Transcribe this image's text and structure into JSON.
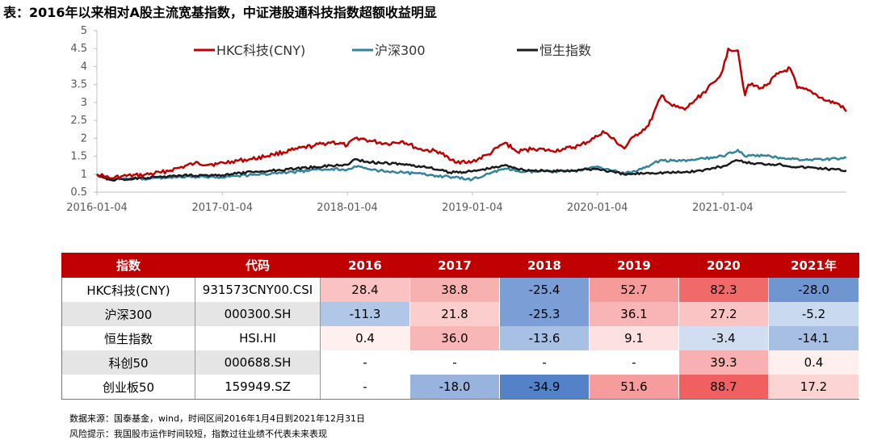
{
  "title": "表：2016年以来相对A股主流宽基指数，中证港股通科技指数超额收益明显",
  "chart_data": {
    "type": "line",
    "title": "",
    "ylim": [
      0.5,
      5
    ],
    "yticks": [
      "0.5",
      "1",
      "1.5",
      "2",
      "2.5",
      "3",
      "3.5",
      "4",
      "4.5",
      "5"
    ],
    "xticks": [
      "2016-01-04",
      "2017-01-04",
      "2018-01-04",
      "2019-01-04",
      "2020-01-04",
      "2021-01-04"
    ],
    "x_range": [
      "2016-01-04",
      "2021-12-31"
    ],
    "grid": false,
    "legend_position": "top-center",
    "series": [
      {
        "name": "HKC科技(CNY)",
        "color": "#c00000",
        "points": [
          [
            "2016-01-04",
            1.0
          ],
          [
            "2016-02-12",
            0.88
          ],
          [
            "2016-03-15",
            0.94
          ],
          [
            "2016-05-20",
            0.98
          ],
          [
            "2016-07-10",
            1.05
          ],
          [
            "2016-09-01",
            1.18
          ],
          [
            "2016-10-15",
            1.3
          ],
          [
            "2016-12-20",
            1.28
          ],
          [
            "2017-02-01",
            1.36
          ],
          [
            "2017-04-01",
            1.42
          ],
          [
            "2017-06-01",
            1.55
          ],
          [
            "2017-08-01",
            1.68
          ],
          [
            "2017-10-01",
            1.8
          ],
          [
            "2017-11-20",
            1.9
          ],
          [
            "2018-01-04",
            1.8
          ],
          [
            "2018-02-01",
            2.02
          ],
          [
            "2018-03-15",
            1.92
          ],
          [
            "2018-05-01",
            1.85
          ],
          [
            "2018-06-15",
            1.92
          ],
          [
            "2018-08-01",
            1.7
          ],
          [
            "2018-10-01",
            1.62
          ],
          [
            "2018-10-30",
            1.4
          ],
          [
            "2018-12-20",
            1.32
          ],
          [
            "2019-01-04",
            1.35
          ],
          [
            "2019-02-20",
            1.55
          ],
          [
            "2019-04-10",
            1.88
          ],
          [
            "2019-05-15",
            1.62
          ],
          [
            "2019-07-01",
            1.72
          ],
          [
            "2019-08-20",
            1.65
          ],
          [
            "2019-10-01",
            1.7
          ],
          [
            "2019-11-15",
            1.8
          ],
          [
            "2020-01-04",
            2.05
          ],
          [
            "2020-01-20",
            2.2
          ],
          [
            "2020-03-23",
            1.72
          ],
          [
            "2020-04-20",
            2.05
          ],
          [
            "2020-06-01",
            2.35
          ],
          [
            "2020-07-10",
            3.2
          ],
          [
            "2020-08-10",
            2.9
          ],
          [
            "2020-09-15",
            2.8
          ],
          [
            "2020-10-20",
            3.1
          ],
          [
            "2020-12-15",
            3.6
          ],
          [
            "2021-01-04",
            3.9
          ],
          [
            "2021-01-20",
            4.5
          ],
          [
            "2021-02-17",
            4.45
          ],
          [
            "2021-03-10",
            3.2
          ],
          [
            "2021-03-20",
            3.5
          ],
          [
            "2021-05-01",
            3.4
          ],
          [
            "2021-06-15",
            3.8
          ],
          [
            "2021-07-20",
            3.95
          ],
          [
            "2021-08-10",
            3.4
          ],
          [
            "2021-09-20",
            3.3
          ],
          [
            "2021-11-01",
            3.05
          ],
          [
            "2021-12-10",
            2.95
          ],
          [
            "2021-12-31",
            2.75
          ]
        ]
      },
      {
        "name": "沪深300",
        "color": "#31849b",
        "points": [
          [
            "2016-01-04",
            1.0
          ],
          [
            "2016-02-12",
            0.85
          ],
          [
            "2016-05-20",
            0.87
          ],
          [
            "2016-08-15",
            0.92
          ],
          [
            "2016-12-20",
            0.92
          ],
          [
            "2017-04-01",
            0.98
          ],
          [
            "2017-07-15",
            1.05
          ],
          [
            "2017-11-20",
            1.15
          ],
          [
            "2018-01-04",
            1.13
          ],
          [
            "2018-01-25",
            1.22
          ],
          [
            "2018-03-15",
            1.12
          ],
          [
            "2018-06-15",
            1.05
          ],
          [
            "2018-09-01",
            0.98
          ],
          [
            "2018-12-20",
            0.87
          ],
          [
            "2019-01-04",
            0.85
          ],
          [
            "2019-03-01",
            1.05
          ],
          [
            "2019-04-15",
            1.15
          ],
          [
            "2019-06-01",
            1.06
          ],
          [
            "2019-08-01",
            1.08
          ],
          [
            "2019-11-15",
            1.1
          ],
          [
            "2020-01-04",
            1.22
          ],
          [
            "2020-03-23",
            1.02
          ],
          [
            "2020-05-01",
            1.1
          ],
          [
            "2020-07-10",
            1.4
          ],
          [
            "2020-08-20",
            1.36
          ],
          [
            "2020-10-15",
            1.4
          ],
          [
            "2021-01-04",
            1.5
          ],
          [
            "2021-02-17",
            1.68
          ],
          [
            "2021-03-10",
            1.5
          ],
          [
            "2021-05-01",
            1.52
          ],
          [
            "2021-07-01",
            1.45
          ],
          [
            "2021-09-01",
            1.4
          ],
          [
            "2021-11-01",
            1.42
          ],
          [
            "2021-12-31",
            1.45
          ]
        ]
      },
      {
        "name": "恒生指数",
        "color": "#1a1a1a",
        "points": [
          [
            "2016-01-04",
            1.0
          ],
          [
            "2016-02-12",
            0.84
          ],
          [
            "2016-06-01",
            0.9
          ],
          [
            "2016-09-15",
            0.98
          ],
          [
            "2016-12-20",
            0.96
          ],
          [
            "2017-04-01",
            1.06
          ],
          [
            "2017-07-15",
            1.14
          ],
          [
            "2017-11-20",
            1.24
          ],
          [
            "2018-01-04",
            1.26
          ],
          [
            "2018-01-26",
            1.42
          ],
          [
            "2018-03-15",
            1.33
          ],
          [
            "2018-06-15",
            1.28
          ],
          [
            "2018-09-01",
            1.18
          ],
          [
            "2018-10-30",
            1.05
          ],
          [
            "2019-01-04",
            1.08
          ],
          [
            "2019-04-15",
            1.25
          ],
          [
            "2019-06-01",
            1.12
          ],
          [
            "2019-08-20",
            1.08
          ],
          [
            "2019-11-15",
            1.12
          ],
          [
            "2020-01-04",
            1.15
          ],
          [
            "2020-03-23",
            0.99
          ],
          [
            "2020-06-01",
            1.04
          ],
          [
            "2020-09-01",
            1.05
          ],
          [
            "2020-11-01",
            1.1
          ],
          [
            "2021-01-04",
            1.22
          ],
          [
            "2021-02-17",
            1.38
          ],
          [
            "2021-04-01",
            1.3
          ],
          [
            "2021-06-15",
            1.28
          ],
          [
            "2021-08-10",
            1.2
          ],
          [
            "2021-10-01",
            1.18
          ],
          [
            "2021-12-31",
            1.1
          ]
        ]
      }
    ]
  },
  "table": {
    "headers": [
      "指数",
      "代码",
      "2016",
      "2017",
      "2018",
      "2019",
      "2020",
      "2021年"
    ],
    "rows": [
      {
        "name": "HKC科技(CNY)",
        "code": "931573CNY00.CSI",
        "values": [
          "28.4",
          "38.8",
          "-25.4",
          "52.7",
          "82.3",
          "-28.0"
        ]
      },
      {
        "name": "沪深300",
        "code": "000300.SH",
        "values": [
          "-11.3",
          "21.8",
          "-25.3",
          "36.1",
          "27.2",
          "-5.2"
        ]
      },
      {
        "name": "恒生指数",
        "code": "HSI.HI",
        "values": [
          "0.4",
          "36.0",
          "-13.6",
          "9.1",
          "-3.4",
          "-14.1"
        ]
      },
      {
        "name": "科创50",
        "code": "000688.SH",
        "values": [
          "-",
          "-",
          "-",
          "-",
          "39.3",
          "0.4"
        ]
      },
      {
        "name": "创业板50",
        "code": "159949.SZ",
        "values": [
          "-",
          "-18.0",
          "-34.9",
          "51.6",
          "88.7",
          "17.2"
        ]
      }
    ]
  },
  "notes": {
    "source": "数据来源：国泰基金，wind，时间区间2016年1月4日到2021年12月31日",
    "risk": "风险提示：我国股市运作时间较短，指数过往业绩不代表未来表现"
  }
}
